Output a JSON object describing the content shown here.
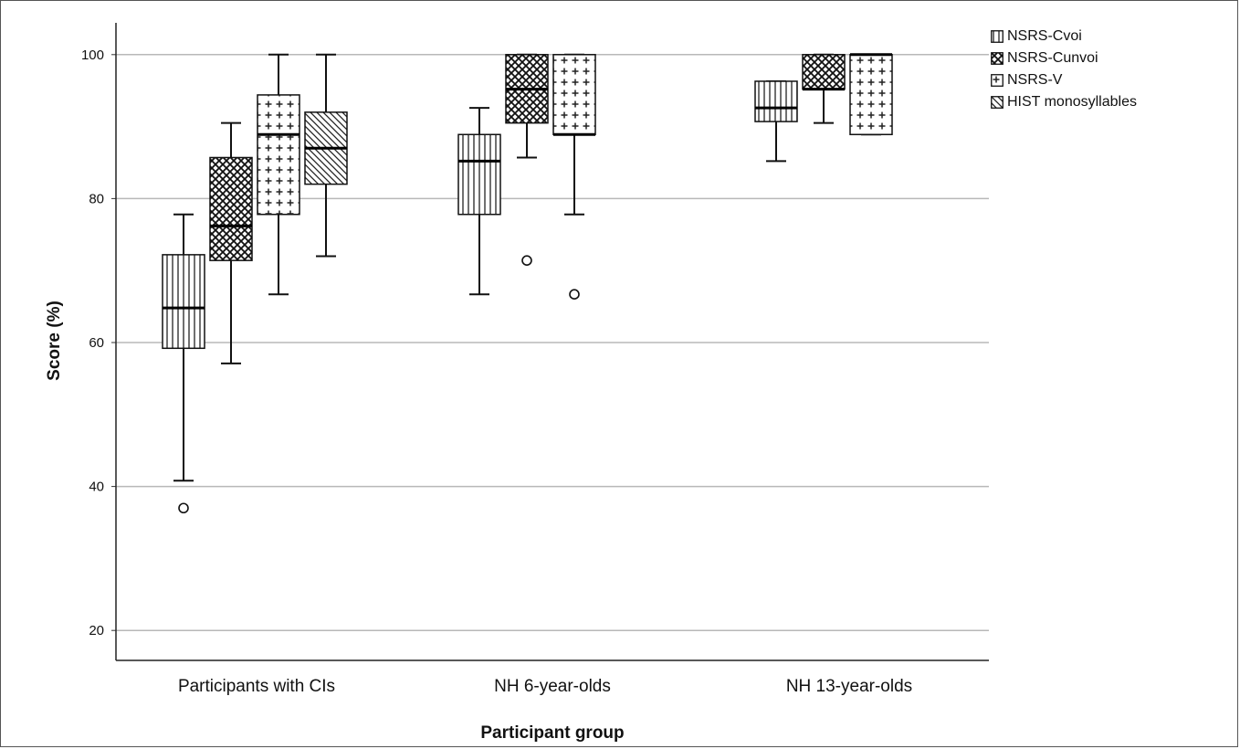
{
  "chart_data": {
    "type": "boxplot",
    "xlabel": "Participant group",
    "ylabel": "Score (%)",
    "ylim": [
      16,
      104
    ],
    "yticks": [
      20,
      40,
      60,
      80,
      100
    ],
    "grid": "horizontal",
    "legend_position": "right",
    "categories": [
      "Participants with CIs",
      "NH 6-year-olds",
      "NH 13-year-olds"
    ],
    "series": [
      {
        "name": "NSRS-Cvoi",
        "pattern": "vertical-lines",
        "boxes": [
          {
            "category": "Participants with CIs",
            "whisker_low": 40.8,
            "q1": 59.2,
            "median": 64.8,
            "q3": 72.2,
            "whisker_high": 77.8,
            "outliers": [
              37.0
            ]
          },
          {
            "category": "NH 6-year-olds",
            "whisker_low": 66.7,
            "q1": 77.8,
            "median": 85.2,
            "q3": 88.9,
            "whisker_high": 92.6,
            "outliers": []
          },
          {
            "category": "NH 13-year-olds",
            "whisker_low": 85.2,
            "q1": 90.7,
            "median": 92.6,
            "q3": 96.3,
            "whisker_high": 96.3,
            "outliers": []
          }
        ]
      },
      {
        "name": "NSRS-Cunvoi",
        "pattern": "crosshatch",
        "boxes": [
          {
            "category": "Participants with CIs",
            "whisker_low": 57.1,
            "q1": 71.4,
            "median": 76.2,
            "q3": 85.7,
            "whisker_high": 90.5,
            "outliers": []
          },
          {
            "category": "NH 6-year-olds",
            "whisker_low": 85.7,
            "q1": 90.5,
            "median": 95.2,
            "q3": 100,
            "whisker_high": 100,
            "outliers": [
              71.4
            ]
          },
          {
            "category": "NH 13-year-olds",
            "whisker_low": 90.5,
            "q1": 95.2,
            "median": 95.2,
            "q3": 100,
            "whisker_high": 100,
            "outliers": []
          }
        ]
      },
      {
        "name": "NSRS-V",
        "pattern": "plus",
        "boxes": [
          {
            "category": "Participants with CIs",
            "whisker_low": 66.7,
            "q1": 77.8,
            "median": 88.9,
            "q3": 94.4,
            "whisker_high": 100,
            "outliers": []
          },
          {
            "category": "NH 6-year-olds",
            "whisker_low": 77.8,
            "q1": 88.9,
            "median": 88.9,
            "q3": 100,
            "whisker_high": 100,
            "outliers": [
              66.7
            ]
          },
          {
            "category": "NH 13-year-olds",
            "whisker_low": 88.9,
            "q1": 88.9,
            "median": 100,
            "q3": 100,
            "whisker_high": 100,
            "outliers": []
          }
        ]
      },
      {
        "name": "HIST monosyllables",
        "pattern": "diagonal-lines",
        "boxes": [
          {
            "category": "Participants with CIs",
            "whisker_low": 72.0,
            "q1": 82.0,
            "median": 87.0,
            "q3": 92.0,
            "whisker_high": 100,
            "outliers": []
          }
        ]
      }
    ]
  }
}
